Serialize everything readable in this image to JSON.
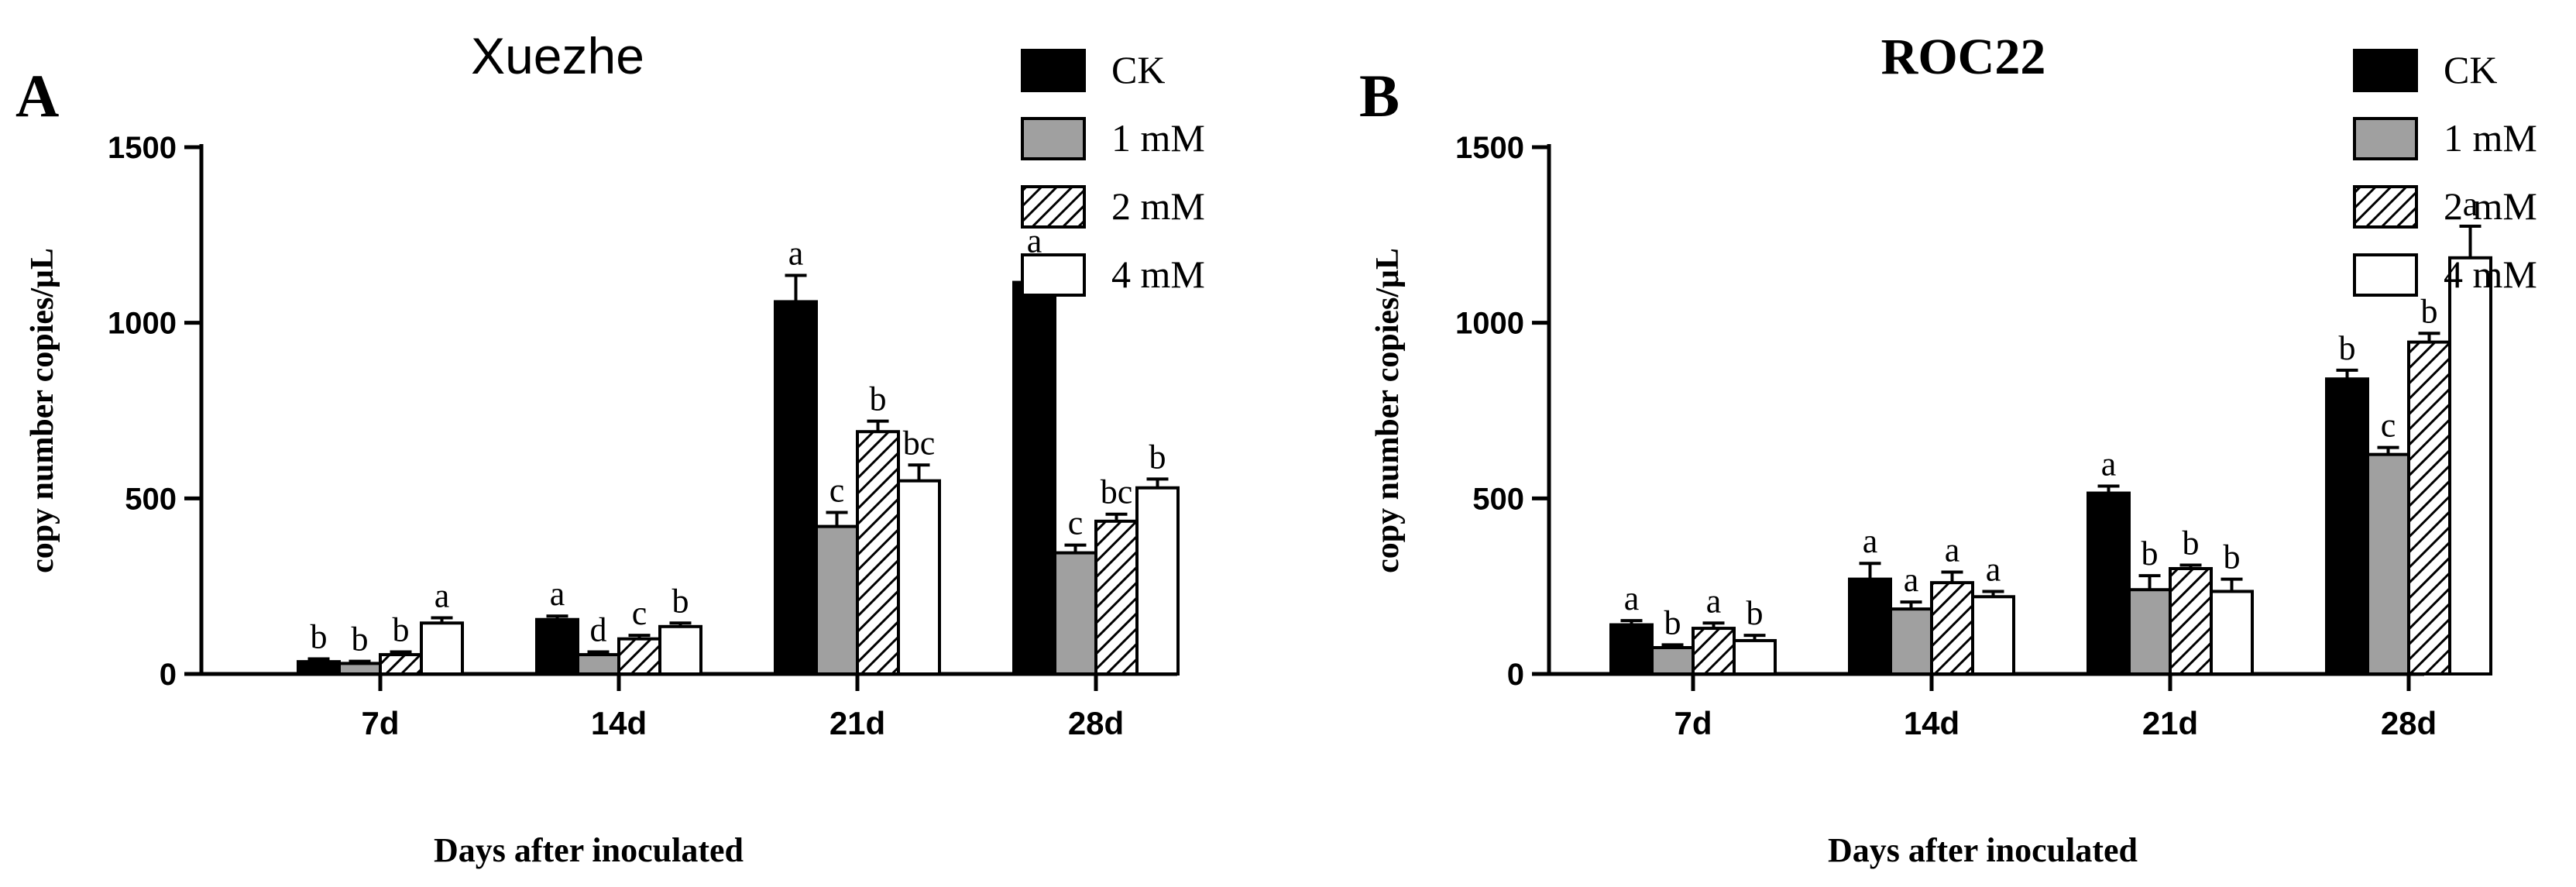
{
  "chart_data": [
    {
      "panel_label": "A",
      "type": "bar",
      "title": "Xuezhe",
      "xlabel": "Days after inoculated",
      "ylabel": "copy number copies/μL",
      "ylim": [
        0,
        1500
      ],
      "yticks": [
        0,
        500,
        1000,
        1500
      ],
      "categories": [
        "7d",
        "14d",
        "21d",
        "28d"
      ],
      "legend_position": "top-right",
      "series": [
        {
          "name": "CK",
          "fill": "solid",
          "color": "#000000",
          "values": [
            35,
            155,
            1060,
            1115
          ],
          "errors": [
            8,
            10,
            75,
            55
          ],
          "letters": [
            "b",
            "a",
            "a",
            "a"
          ]
        },
        {
          "name": "1 mM",
          "fill": "solid",
          "color": "#a0a0a0",
          "values": [
            30,
            55,
            420,
            345
          ],
          "errors": [
            6,
            8,
            40,
            22
          ],
          "letters": [
            "b",
            "d",
            "c",
            "c"
          ]
        },
        {
          "name": "2 mM",
          "fill": "hatched",
          "color": "#000000",
          "values": [
            55,
            100,
            690,
            435
          ],
          "errors": [
            8,
            10,
            30,
            20
          ],
          "letters": [
            "b",
            "c",
            "b",
            "bc"
          ]
        },
        {
          "name": "4 mM",
          "fill": "open",
          "color": "#ffffff",
          "values": [
            145,
            135,
            550,
            530
          ],
          "errors": [
            15,
            10,
            45,
            25
          ],
          "letters": [
            "a",
            "b",
            "bc",
            "b"
          ]
        }
      ],
      "grid": false
    },
    {
      "panel_label": "B",
      "type": "bar",
      "title": "ROC22",
      "xlabel": "Days after inoculated",
      "ylabel": "copy number copies/μL",
      "ylim": [
        0,
        1500
      ],
      "yticks": [
        0,
        500,
        1000,
        1500
      ],
      "categories": [
        "7d",
        "14d",
        "21d",
        "28d"
      ],
      "legend_position": "top-right",
      "series": [
        {
          "name": "CK",
          "fill": "solid",
          "color": "#000000",
          "values": [
            140,
            270,
            515,
            840
          ],
          "errors": [
            12,
            45,
            20,
            25
          ],
          "letters": [
            "a",
            "a",
            "a",
            "b"
          ]
        },
        {
          "name": "1 mM",
          "fill": "solid",
          "color": "#a0a0a0",
          "values": [
            75,
            185,
            240,
            625
          ],
          "errors": [
            8,
            20,
            40,
            20
          ],
          "letters": [
            "b",
            "a",
            "b",
            "c"
          ]
        },
        {
          "name": "2 mM",
          "fill": "hatched",
          "color": "#000000",
          "values": [
            130,
            260,
            300,
            945
          ],
          "errors": [
            15,
            30,
            10,
            25
          ],
          "letters": [
            "a",
            "a",
            "b",
            "b"
          ]
        },
        {
          "name": "4 mM",
          "fill": "open",
          "color": "#ffffff",
          "values": [
            95,
            220,
            235,
            1185
          ],
          "errors": [
            15,
            15,
            35,
            90
          ],
          "letters": [
            "b",
            "a",
            "b",
            "a"
          ]
        }
      ],
      "grid": false
    }
  ]
}
